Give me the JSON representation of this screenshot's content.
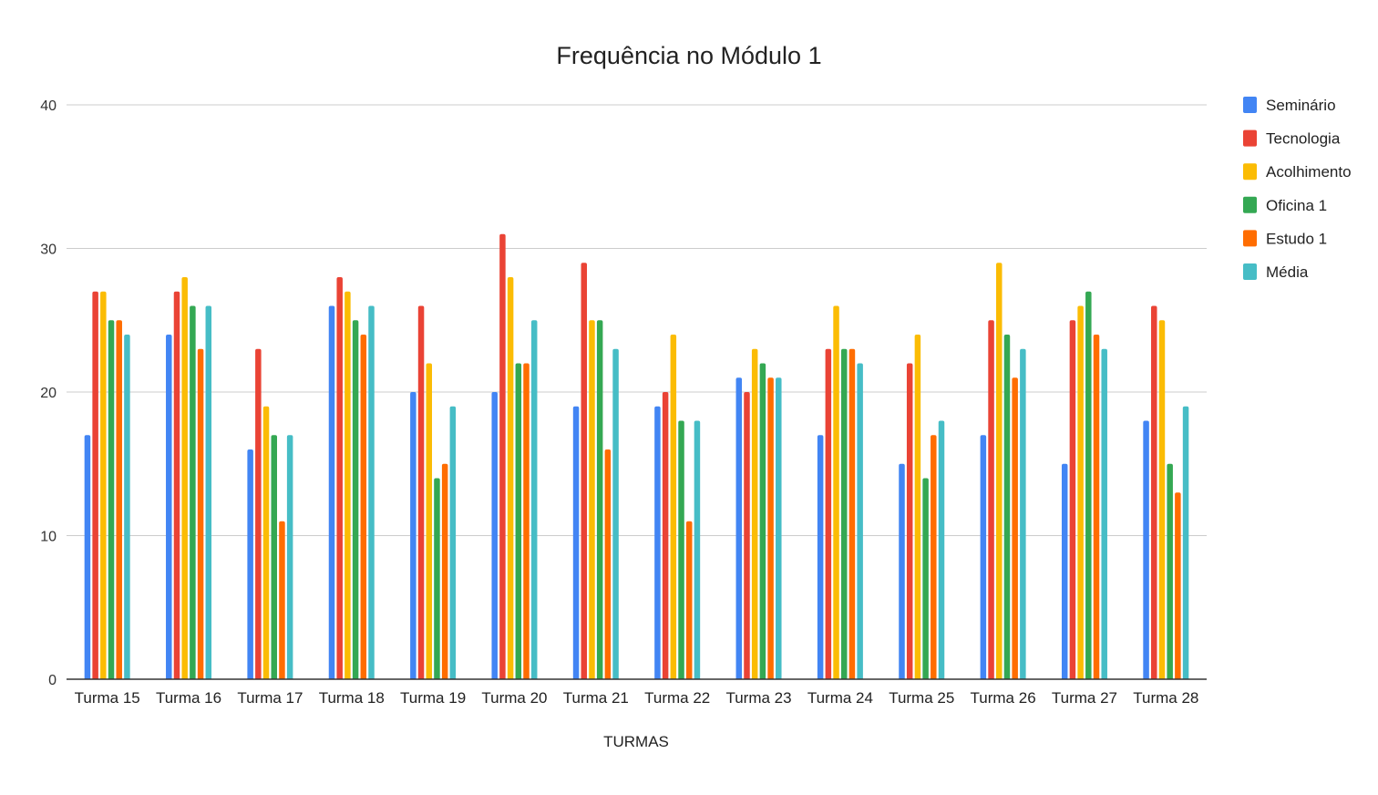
{
  "chart_data": {
    "type": "bar",
    "title": "Frequência no Módulo 1",
    "xlabel": "TURMAS",
    "ylabel": "",
    "ylim": [
      0,
      40
    ],
    "yticks": [
      0,
      10,
      20,
      30,
      40
    ],
    "grid": true,
    "legend_position": "right",
    "categories": [
      "Turma 15",
      "Turma 16",
      "Turma 17",
      "Turma 18",
      "Turma 19",
      "Turma 20",
      "Turma 21",
      "Turma 22",
      "Turma 23",
      "Turma 24",
      "Turma 25",
      "Turma 26",
      "Turma 27",
      "Turma 28"
    ],
    "series": [
      {
        "name": "Seminário",
        "color": "#4285F4",
        "values": [
          17,
          24,
          16,
          26,
          20,
          20,
          19,
          19,
          21,
          17,
          15,
          17,
          15,
          18
        ]
      },
      {
        "name": "Tecnologia",
        "color": "#EA4335",
        "values": [
          27,
          27,
          23,
          28,
          26,
          31,
          29,
          20,
          20,
          23,
          22,
          25,
          25,
          26
        ]
      },
      {
        "name": "Acolhimento",
        "color": "#FBBC04",
        "values": [
          27,
          28,
          19,
          27,
          22,
          28,
          25,
          24,
          23,
          26,
          24,
          29,
          26,
          25
        ]
      },
      {
        "name": "Oficina 1",
        "color": "#34A853",
        "values": [
          25,
          26,
          17,
          25,
          14,
          22,
          25,
          18,
          22,
          23,
          14,
          24,
          27,
          15
        ]
      },
      {
        "name": "Estudo 1",
        "color": "#FF6D01",
        "values": [
          25,
          23,
          11,
          24,
          15,
          22,
          16,
          11,
          21,
          23,
          17,
          21,
          24,
          13
        ]
      },
      {
        "name": "Média",
        "color": "#46BDC6",
        "values": [
          24,
          26,
          17,
          26,
          19,
          25,
          23,
          18,
          21,
          22,
          18,
          23,
          23,
          19
        ]
      }
    ]
  }
}
